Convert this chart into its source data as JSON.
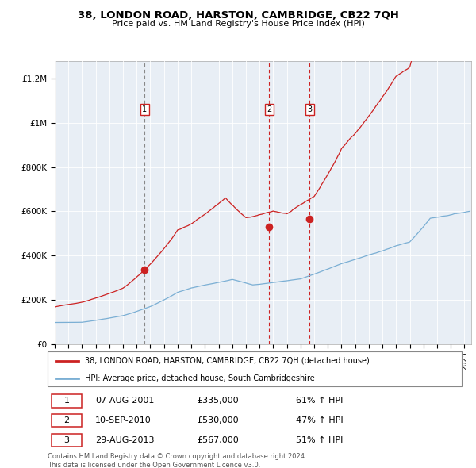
{
  "title": "38, LONDON ROAD, HARSTON, CAMBRIDGE, CB22 7QH",
  "subtitle": "Price paid vs. HM Land Registry's House Price Index (HPI)",
  "ylabel_ticks": [
    "£0",
    "£200K",
    "£400K",
    "£600K",
    "£800K",
    "£1M",
    "£1.2M"
  ],
  "ylabel_values": [
    0,
    200000,
    400000,
    600000,
    800000,
    1000000,
    1200000
  ],
  "ylim": [
    0,
    1280000
  ],
  "xlim_start": 1995.0,
  "xlim_end": 2025.5,
  "legend_line1": "38, LONDON ROAD, HARSTON, CAMBRIDGE, CB22 7QH (detached house)",
  "legend_line2": "HPI: Average price, detached house, South Cambridgeshire",
  "transactions": [
    {
      "label": "1",
      "date": "07-AUG-2001",
      "price": "£335,000",
      "pct": "61% ↑ HPI",
      "year": 2001.58,
      "price_val": 335000,
      "vline_style": "dashed_gray"
    },
    {
      "label": "2",
      "date": "10-SEP-2010",
      "price": "£530,000",
      "pct": "47% ↑ HPI",
      "year": 2010.7,
      "price_val": 530000,
      "vline_style": "dashed_red"
    },
    {
      "label": "3",
      "date": "29-AUG-2013",
      "price": "£567,000",
      "pct": "51% ↑ HPI",
      "year": 2013.66,
      "price_val": 567000,
      "vline_style": "dashed_red"
    }
  ],
  "footer": "Contains HM Land Registry data © Crown copyright and database right 2024.\nThis data is licensed under the Open Government Licence v3.0.",
  "hpi_color": "#7bafd4",
  "price_color": "#cc2222",
  "background_color": "#ffffff",
  "plot_bg_color": "#e8eef5",
  "grid_color": "#ffffff"
}
